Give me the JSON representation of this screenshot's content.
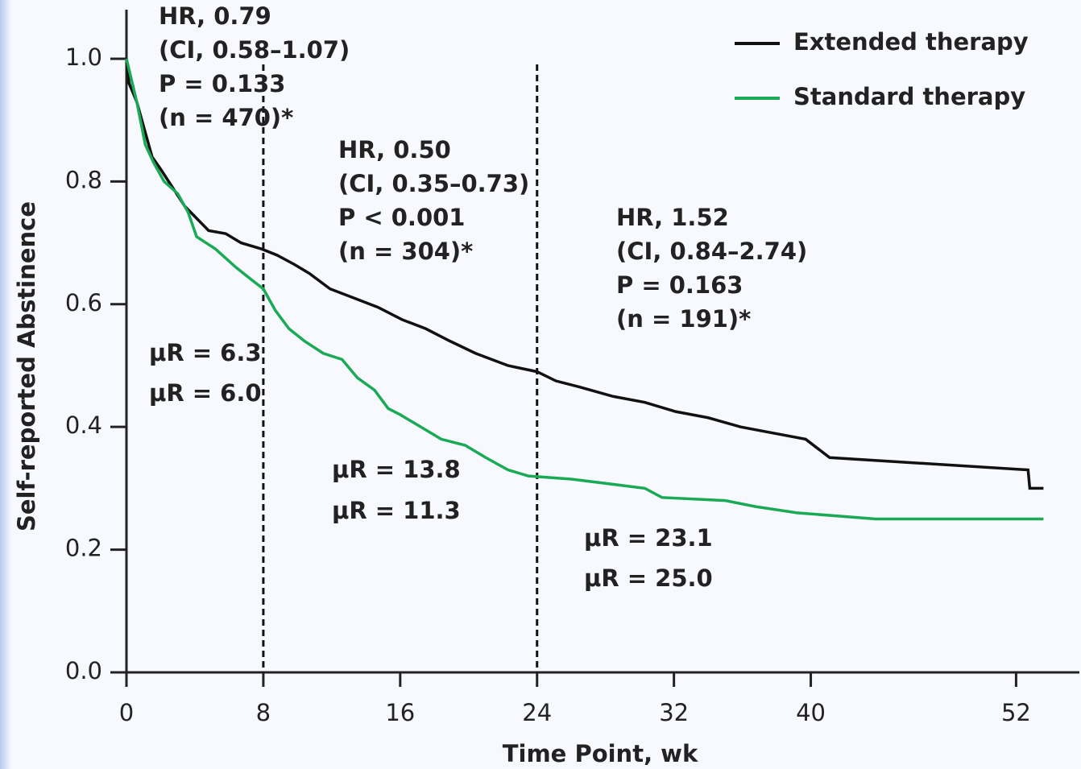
{
  "chart_data": {
    "type": "line",
    "xlabel": "Time Point, wk",
    "ylabel": "Self-reported Abstinence",
    "xlim": [
      0,
      55.7
    ],
    "ylim": [
      0,
      1.08
    ],
    "xticks": [
      0,
      8,
      16,
      24,
      32,
      40,
      52
    ],
    "yticks": [
      {
        "value": 0,
        "label": "0.0"
      },
      {
        "value": 0.2,
        "label": "0.2"
      },
      {
        "value": 0.4,
        "label": "0.4"
      },
      {
        "value": 0.6,
        "label": "0.6"
      },
      {
        "value": 0.8,
        "label": "0.8"
      },
      {
        "value": 1,
        "label": "1.0"
      }
    ],
    "vlines": [
      8,
      24
    ],
    "series": [
      {
        "name": "Extended therapy",
        "color": "#111111",
        "x": [
          0,
          0.15,
          0.6,
          1.1,
          1.5,
          2.0,
          2.7,
          3.4,
          4.1,
          4.8,
          5.8,
          6.7,
          7.9,
          8.8,
          9.8,
          10.7,
          11.9,
          13.3,
          14.7,
          16.1,
          17.5,
          18.9,
          20.4,
          22.3,
          24.0,
          25.1,
          26.5,
          28.4,
          30.3,
          32.1,
          34.0,
          35.9,
          37.8,
          39.7,
          41.1,
          52.7,
          52.8,
          53.6
        ],
        "values": [
          1.0,
          0.96,
          0.93,
          0.88,
          0.84,
          0.82,
          0.79,
          0.76,
          0.74,
          0.72,
          0.715,
          0.7,
          0.69,
          0.68,
          0.665,
          0.65,
          0.625,
          0.61,
          0.595,
          0.575,
          0.56,
          0.54,
          0.52,
          0.5,
          0.49,
          0.475,
          0.465,
          0.45,
          0.44,
          0.425,
          0.415,
          0.4,
          0.39,
          0.38,
          0.35,
          0.33,
          0.3,
          0.3
        ]
      },
      {
        "name": "Standard therapy",
        "color": "#1aaa55",
        "x": [
          0,
          0.6,
          1.1,
          1.6,
          2.2,
          3.0,
          3.6,
          4.1,
          5.2,
          6.4,
          7.3,
          8.0,
          8.7,
          9.5,
          10.4,
          11.5,
          12.6,
          13.5,
          14.5,
          15.3,
          16.0,
          17.2,
          18.4,
          19.8,
          21.0,
          22.3,
          23.5,
          26.0,
          30.3,
          31.3,
          35.0,
          36.8,
          39.2,
          43.8,
          53.6
        ],
        "values": [
          1.0,
          0.93,
          0.86,
          0.83,
          0.8,
          0.78,
          0.75,
          0.71,
          0.69,
          0.66,
          0.64,
          0.625,
          0.59,
          0.56,
          0.54,
          0.52,
          0.51,
          0.48,
          0.46,
          0.43,
          0.42,
          0.4,
          0.38,
          0.37,
          0.35,
          0.33,
          0.32,
          0.315,
          0.3,
          0.285,
          0.28,
          0.27,
          0.26,
          0.25,
          0.25
        ]
      }
    ],
    "annotations": [
      {
        "lines": [
          "HR, 0.79",
          "(CI, 0.58–1.07)",
          "P = 0.133",
          "(n = 470)*"
        ]
      },
      {
        "lines": [
          "HR, 0.50",
          "(CI, 0.35–0.73)",
          "P < 0.001",
          "(n = 304)*"
        ]
      },
      {
        "lines": [
          "HR, 1.52",
          "(CI, 0.84–2.74)",
          "P = 0.163",
          "(n = 191)*"
        ]
      },
      {
        "lines": [
          "μR = 6.3"
        ],
        "color": "#111111"
      },
      {
        "lines": [
          "μR = 6.0"
        ],
        "color": "#1aaa55"
      },
      {
        "lines": [
          "μR = 13.8"
        ],
        "color": "#111111"
      },
      {
        "lines": [
          "μR = 11.3"
        ],
        "color": "#1aaa55"
      },
      {
        "lines": [
          "μR = 23.1"
        ],
        "color": "#111111"
      },
      {
        "lines": [
          "μR = 25.0"
        ],
        "color": "#1aaa55"
      }
    ],
    "legend": "upper right"
  }
}
